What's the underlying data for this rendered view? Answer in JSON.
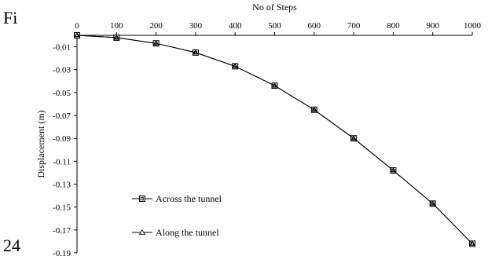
{
  "page": {
    "left_fragment": "Fi",
    "bottom_fragment": "24"
  },
  "chart_data": {
    "type": "line",
    "title": "",
    "xlabel": "No of Steps",
    "ylabel": "Displacement (m)",
    "xlim": [
      0,
      1000
    ],
    "ylim": [
      -0.19,
      0.01
    ],
    "x_ticks": [
      0,
      100,
      200,
      300,
      400,
      500,
      600,
      700,
      800,
      900,
      1000
    ],
    "y_ticks": [
      "-0.01",
      "-0.03",
      "-0.05",
      "-0.07",
      "-0.09",
      "-0.11",
      "-0.13",
      "-0.15",
      "-0.17",
      "-0.19"
    ],
    "x_axis_position": "top",
    "grid": false,
    "legend_position": "bottom-left",
    "series": [
      {
        "name": "Across the tunnel",
        "marker": "square",
        "x": [
          0,
          100,
          200,
          300,
          400,
          500,
          600,
          700,
          800,
          900,
          1000
        ],
        "y": [
          0.0,
          -0.002,
          -0.007,
          -0.015,
          -0.027,
          -0.044,
          -0.065,
          -0.09,
          -0.118,
          -0.147,
          -0.182
        ]
      },
      {
        "name": "Along the tunnel",
        "marker": "triangle",
        "x": [
          0,
          100,
          200,
          300,
          400,
          500,
          600,
          700,
          800,
          900,
          1000
        ],
        "y": [
          0.0,
          -0.002,
          -0.007,
          -0.015,
          -0.027,
          -0.044,
          -0.065,
          -0.09,
          -0.118,
          -0.147,
          -0.182
        ]
      }
    ],
    "colors": {
      "line": "#000000",
      "marker_fill": "#d9d9d9"
    }
  }
}
